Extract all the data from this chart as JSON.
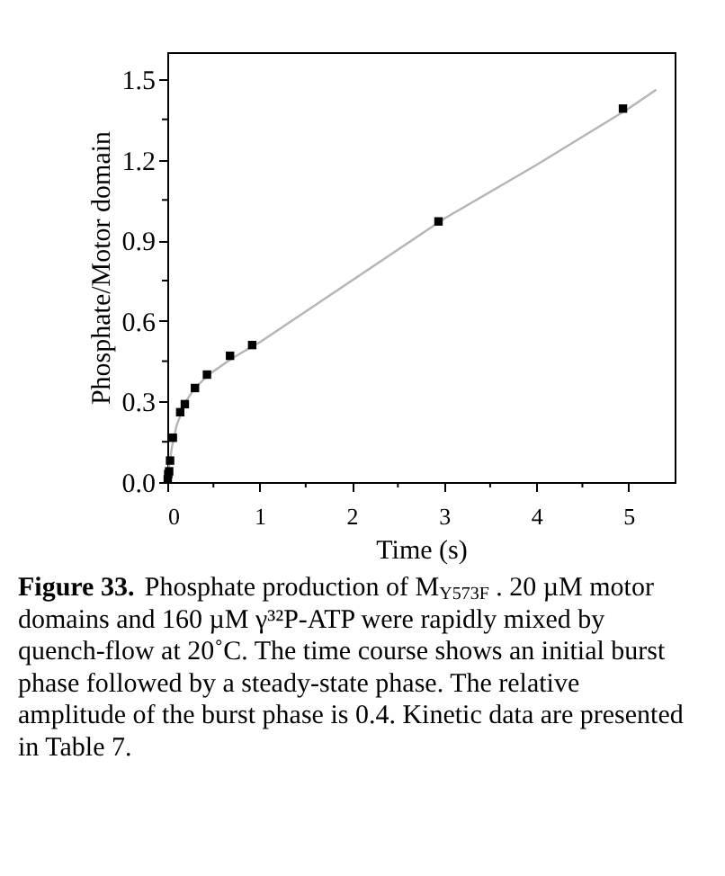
{
  "chart_data": {
    "type": "scatter",
    "xlabel": "Time (s)",
    "ylabel": "Phosphate/Motor domain",
    "xlim": [
      0,
      5.5
    ],
    "ylim": [
      0,
      1.6
    ],
    "xticks": [
      0,
      {
        "value": 0.5,
        "label": null
      },
      1,
      {
        "value": 1.5,
        "label": null
      },
      2,
      {
        "value": 2.5,
        "label": null
      },
      3,
      {
        "value": 3.5,
        "label": null
      },
      4,
      {
        "value": 4.5,
        "label": null
      },
      5
    ],
    "yticks": [
      {
        "value": 0,
        "label": "0.0"
      },
      {
        "value": 0.15,
        "label": null
      },
      {
        "value": 0.3,
        "label": "0.3"
      },
      {
        "value": 0.45,
        "label": null
      },
      {
        "value": 0.6,
        "label": "0.6"
      },
      {
        "value": 0.75,
        "label": null
      },
      {
        "value": 0.9,
        "label": "0.9"
      },
      {
        "value": 1.05,
        "label": null
      },
      {
        "value": 1.2,
        "label": "1.2"
      },
      {
        "value": 1.35,
        "label": null
      },
      {
        "value": 1.5,
        "label": "1.5"
      }
    ],
    "grid": false,
    "series": [
      {
        "type": "line",
        "color": "#b4b4b4",
        "line_style": "solid",
        "x": [
          0,
          0.02,
          0.05,
          0.1,
          0.2,
          0.3,
          0.45,
          0.7,
          1,
          2,
          3,
          4,
          5,
          5.3
        ],
        "values": [
          0,
          0.06,
          0.13,
          0.21,
          0.3,
          0.35,
          0.4,
          0.46,
          0.52,
          0.75,
          0.98,
          1.18,
          1.39,
          1.46
        ]
      },
      {
        "type": "scatter",
        "color": "#000000",
        "marker": "square",
        "x": [
          0.005,
          0.01,
          0.02,
          0.03,
          0.06,
          0.14,
          0.19,
          0.3,
          0.43,
          0.68,
          0.92,
          2.94,
          4.94
        ],
        "values": [
          0.01,
          0.03,
          0.04,
          0.08,
          0.165,
          0.26,
          0.29,
          0.35,
          0.4,
          0.47,
          0.51,
          0.97,
          1.39
        ]
      }
    ],
    "annotations": [
      "Figure 33.",
      "Phosphate production of M$_{Y573F}$ . 20 µM motor domains and 160 µM γ³²P-ATP were rapidly mixed by quench-flow at 20˚C. The time course shows an initial burst phase followed by a steady-state phase. The relative amplitude of the burst phase is 0.4. Kinetic data are presented in Table 7."
    ]
  }
}
